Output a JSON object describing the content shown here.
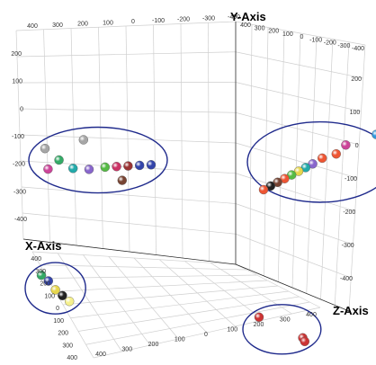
{
  "chart_data": {
    "type": "scatter",
    "dimensions": "3d",
    "title": "",
    "axes": {
      "x": {
        "label": "X-Axis",
        "ticks": [
          "400",
          "300",
          "200",
          "100",
          "0",
          "-100",
          "-200",
          "-300",
          "-400"
        ]
      },
      "y": {
        "label": "Y-Axis",
        "ticks": [
          "200",
          "100",
          "0",
          "-100",
          "-200",
          "-300",
          "-400"
        ]
      },
      "z": {
        "label": "Z-Axis",
        "ticks": [
          "-400",
          "-300",
          "-200",
          "-100",
          "0",
          "100",
          "200",
          "300",
          "400"
        ]
      },
      "back_ticks_left": [
        "400",
        "300",
        "200",
        "100",
        "0",
        "-100",
        "-200",
        "-300",
        "-400"
      ],
      "right_ticks": [
        "400",
        "300",
        "200",
        "100",
        "0",
        "-100",
        "-200",
        "-300",
        "-400"
      ],
      "floor_ticks": [
        "400",
        "300",
        "200",
        "100",
        "0",
        "100",
        "200",
        "300",
        "400"
      ]
    },
    "grid": true,
    "legend": "none",
    "clusters": [
      {
        "name": "",
        "points": [
          {
            "x": 340,
            "y": 180,
            "z": -150,
            "color": "#a6a6a6"
          },
          {
            "x": 260,
            "y": 170,
            "z": -140,
            "color": "#a6a6a6"
          },
          {
            "x": 350,
            "y": 130,
            "z": -120,
            "color": "#cc4499"
          },
          {
            "x": 320,
            "y": 140,
            "z": -130,
            "color": "#33aa66"
          },
          {
            "x": 300,
            "y": 110,
            "z": -110,
            "color": "#22aaaa"
          },
          {
            "x": 270,
            "y": 95,
            "z": -100,
            "color": "#8866cc"
          },
          {
            "x": 240,
            "y": 90,
            "z": -90,
            "color": "#55bb44"
          },
          {
            "x": 220,
            "y": 85,
            "z": -80,
            "color": "#cc3366"
          },
          {
            "x": 200,
            "y": 80,
            "z": -70,
            "color": "#993333"
          },
          {
            "x": 180,
            "y": 75,
            "z": -60,
            "color": "#3344aa"
          },
          {
            "x": 160,
            "y": 70,
            "z": -50,
            "color": "#3344aa"
          },
          {
            "x": 230,
            "y": 60,
            "z": -40,
            "color": "#774433"
          }
        ]
      },
      {
        "name": "",
        "points": [
          {
            "x": 320,
            "y": -250,
            "z": -200,
            "color": "#33aa66"
          },
          {
            "x": 310,
            "y": -270,
            "z": -190,
            "color": "#3344aa"
          },
          {
            "x": 300,
            "y": -300,
            "z": -180,
            "color": "#e6d64d"
          },
          {
            "x": 290,
            "y": -320,
            "z": -170,
            "color": "#222222"
          },
          {
            "x": 280,
            "y": -340,
            "z": -160,
            "color": "#f5f08c"
          }
        ]
      },
      {
        "name": "",
        "points": [
          {
            "x": -100,
            "y": 180,
            "z": 380,
            "color": "#3399dd"
          },
          {
            "x": -60,
            "y": 150,
            "z": 330,
            "color": "#cc4499"
          },
          {
            "x": -50,
            "y": 120,
            "z": 310,
            "color": "#ee5533"
          },
          {
            "x": -30,
            "y": 110,
            "z": 290,
            "color": "#ee5533"
          },
          {
            "x": -20,
            "y": 90,
            "z": 270,
            "color": "#8866cc"
          },
          {
            "x": -10,
            "y": 80,
            "z": 260,
            "color": "#22aaaa"
          },
          {
            "x": 0,
            "y": 70,
            "z": 250,
            "color": "#e6d64d"
          },
          {
            "x": 10,
            "y": 60,
            "z": 240,
            "color": "#55bb44"
          },
          {
            "x": 20,
            "y": 50,
            "z": 230,
            "color": "#ee5533"
          },
          {
            "x": 30,
            "y": 40,
            "z": 220,
            "color": "#774433"
          },
          {
            "x": 40,
            "y": 30,
            "z": 210,
            "color": "#222222"
          },
          {
            "x": 50,
            "y": 20,
            "z": 200,
            "color": "#ee5533"
          }
        ]
      },
      {
        "name": "",
        "points": [
          {
            "x": 60,
            "y": -380,
            "z": 200,
            "color": "#cc3333"
          },
          {
            "x": 30,
            "y": -420,
            "z": 320,
            "color": "#cc3333"
          },
          {
            "x": 20,
            "y": -440,
            "z": 310,
            "color": "#cc3333"
          }
        ]
      }
    ]
  }
}
